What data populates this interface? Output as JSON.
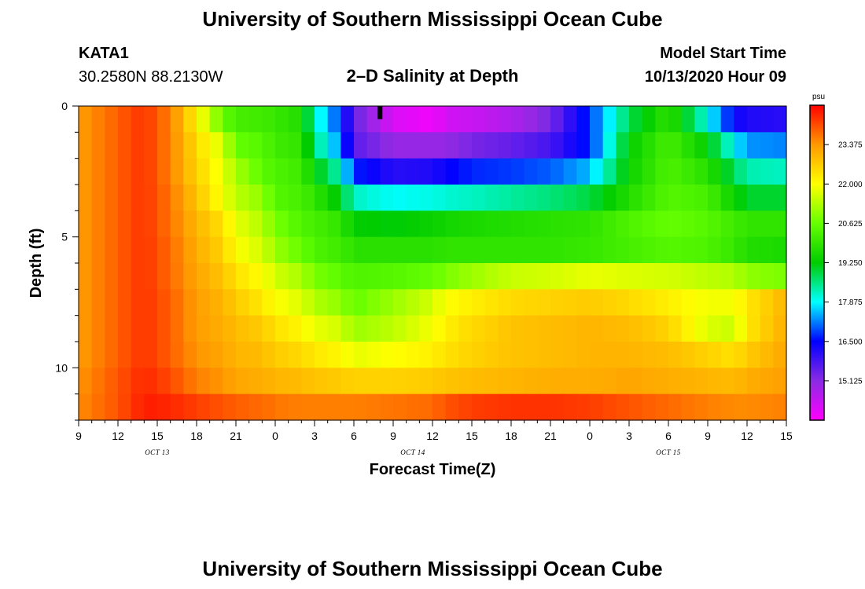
{
  "header": {
    "title": "University of Southern Mississippi Ocean Cube",
    "station_id": "KATA1",
    "station_coords": "30.2580N 88.2130W",
    "plot_title": "2–D Salinity at Depth",
    "model_start_label": "Model Start Time",
    "model_start_value": "10/13/2020 Hour 09"
  },
  "footer": {
    "title": "University of Southern Mississippi Ocean Cube"
  },
  "chart_data": {
    "type": "heatmap",
    "title": "2–D Salinity at Depth",
    "xlabel": "Forecast Time(Z)",
    "ylabel": "Depth (ft)",
    "x_tick_labels": [
      "9",
      "12",
      "15",
      "18",
      "21",
      "0",
      "3",
      "6",
      "9",
      "12",
      "15",
      "18",
      "21",
      "0",
      "3",
      "6",
      "9",
      "12",
      "15"
    ],
    "x_date_labels": [
      "OCT 13",
      "OCT 14",
      "OCT 15"
    ],
    "x_range_hours": [
      0,
      54
    ],
    "y_tick_labels": [
      "0",
      "5",
      "10"
    ],
    "ylim": [
      0,
      12
    ],
    "y_inverted": true,
    "colorbar": {
      "unit": "psu",
      "min": 13.75,
      "max": 24.75,
      "tick_labels": [
        "15.125",
        "16.500",
        "17.875",
        "19.250",
        "20.625",
        "22.000",
        "23.375"
      ]
    },
    "depth_levels_ft": [
      0.5,
      1.5,
      2.5,
      3.5,
      4.5,
      5.5,
      6.5,
      7.5,
      8.5,
      9.5,
      10.5,
      11.5
    ],
    "keyframe_hours": [
      0,
      3,
      5,
      7,
      9,
      11,
      12,
      14,
      15,
      17,
      18,
      20,
      21,
      24,
      27,
      28,
      30,
      33,
      36,
      39,
      42,
      45,
      48,
      50,
      51,
      54
    ],
    "salinity_psu": [
      [
        23.3,
        23.9,
        24.3,
        23.6,
        22.2,
        20.6,
        20.2,
        20.1,
        20.0,
        19.7,
        18.2,
        16.8,
        15.5,
        14.2,
        13.9,
        14.3,
        14.4,
        14.7,
        15.3,
        16.8,
        18.8,
        19.9,
        18.0,
        16.4,
        16.2,
        16.1
      ],
      [
        23.3,
        23.9,
        24.3,
        23.6,
        22.5,
        21.6,
        20.6,
        20.4,
        20.1,
        19.9,
        18.6,
        17.2,
        15.6,
        15.0,
        15.0,
        15.0,
        15.3,
        15.5,
        15.8,
        16.7,
        19.3,
        20.2,
        19.3,
        17.9,
        17.3,
        17.2
      ],
      [
        23.3,
        23.9,
        24.3,
        23.6,
        22.6,
        21.8,
        21.2,
        20.5,
        20.3,
        20.1,
        19.3,
        18.2,
        16.7,
        16.1,
        16.2,
        16.4,
        16.7,
        16.8,
        17.0,
        17.5,
        19.4,
        20.3,
        19.8,
        18.8,
        18.3,
        18.2
      ],
      [
        23.3,
        23.9,
        24.3,
        23.7,
        22.8,
        21.9,
        21.4,
        21.0,
        20.4,
        20.2,
        19.9,
        19.1,
        18.2,
        17.9,
        18.0,
        18.1,
        18.2,
        18.4,
        18.6,
        18.9,
        19.7,
        20.4,
        20.2,
        19.4,
        19.0,
        19.0
      ],
      [
        23.3,
        23.9,
        24.3,
        23.7,
        23.0,
        22.4,
        21.8,
        21.3,
        20.8,
        20.3,
        20.2,
        19.9,
        19.3,
        19.2,
        19.4,
        19.5,
        19.6,
        19.7,
        19.8,
        19.9,
        20.3,
        20.6,
        20.4,
        20.1,
        19.9,
        19.9
      ],
      [
        23.3,
        23.9,
        24.3,
        23.8,
        23.1,
        22.6,
        22.0,
        21.6,
        21.1,
        20.6,
        20.3,
        20.1,
        19.8,
        19.8,
        19.8,
        19.9,
        19.9,
        19.9,
        19.9,
        20.0,
        20.2,
        20.4,
        20.3,
        20.0,
        19.7,
        19.6
      ],
      [
        23.3,
        23.9,
        24.3,
        23.8,
        23.2,
        22.8,
        22.4,
        22.0,
        21.6,
        21.2,
        20.8,
        20.5,
        20.3,
        20.4,
        20.6,
        20.8,
        21.1,
        21.5,
        21.6,
        21.8,
        21.7,
        21.6,
        21.4,
        21.3,
        21.0,
        20.8
      ],
      [
        23.3,
        23.9,
        24.3,
        23.9,
        23.3,
        23.0,
        22.7,
        22.3,
        22.0,
        21.7,
        21.3,
        21.0,
        20.6,
        21.1,
        21.6,
        22.0,
        22.2,
        22.5,
        22.6,
        22.7,
        22.5,
        22.2,
        21.9,
        21.9,
        22.3,
        23.0
      ],
      [
        23.3,
        23.9,
        24.3,
        23.9,
        23.3,
        23.1,
        22.9,
        22.7,
        22.4,
        22.1,
        21.8,
        21.6,
        21.1,
        21.4,
        21.9,
        22.2,
        22.5,
        22.8,
        22.9,
        23.0,
        22.9,
        22.6,
        21.7,
        21.5,
        22.3,
        23.1
      ],
      [
        23.3,
        23.9,
        24.3,
        23.9,
        23.4,
        23.2,
        23.0,
        22.9,
        22.7,
        22.5,
        22.3,
        22.1,
        21.8,
        22.0,
        22.2,
        22.4,
        22.6,
        22.8,
        22.9,
        23.0,
        23.0,
        22.9,
        22.6,
        22.4,
        22.7,
        23.2
      ],
      [
        23.4,
        24.0,
        24.4,
        24.1,
        23.6,
        23.4,
        23.2,
        23.1,
        23.0,
        22.9,
        22.8,
        22.7,
        22.6,
        22.6,
        22.7,
        22.8,
        22.9,
        23.0,
        23.1,
        23.1,
        23.2,
        23.1,
        23.0,
        22.9,
        23.1,
        23.3
      ],
      [
        23.5,
        24.0,
        24.5,
        24.4,
        24.2,
        24.0,
        23.9,
        23.8,
        23.7,
        23.6,
        23.6,
        23.6,
        23.6,
        23.7,
        23.8,
        24.0,
        24.2,
        24.3,
        24.3,
        24.2,
        24.0,
        23.8,
        23.6,
        23.5,
        23.5,
        23.6
      ]
    ],
    "marker": {
      "label": "forecast-time-marker",
      "hour": 23,
      "depth_ft": 0.25
    }
  }
}
